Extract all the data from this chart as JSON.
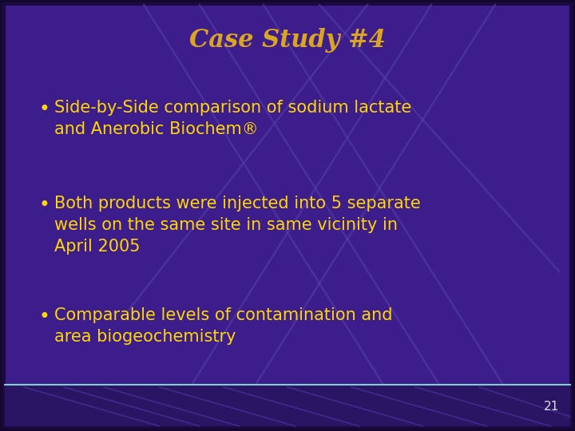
{
  "title": "Case Study #4",
  "title_color": "#DAA520",
  "title_fontsize": 22,
  "title_style": "italic",
  "title_font": "serif",
  "bullet_points": [
    "Side-by-Side comparison of sodium lactate\nand Anerobic Biochem®",
    "Both products were injected into 5 separate\nwells on the same site in same vicinity in\nApril 2005",
    "Comparable levels of contamination and\narea biogeochemistry"
  ],
  "bullet_color": "#FFD700",
  "bullet_fontsize": 15,
  "bullet_font": "sans-serif",
  "background_color": "#3d1d8c",
  "border_color": "#1a0a40",
  "footer_bar_color": "#2a1565",
  "footer_number": "21",
  "footer_color": "#dddddd",
  "footer_fontsize": 11,
  "slide_bg": "#150830",
  "separator_color": "#7fcfcf"
}
